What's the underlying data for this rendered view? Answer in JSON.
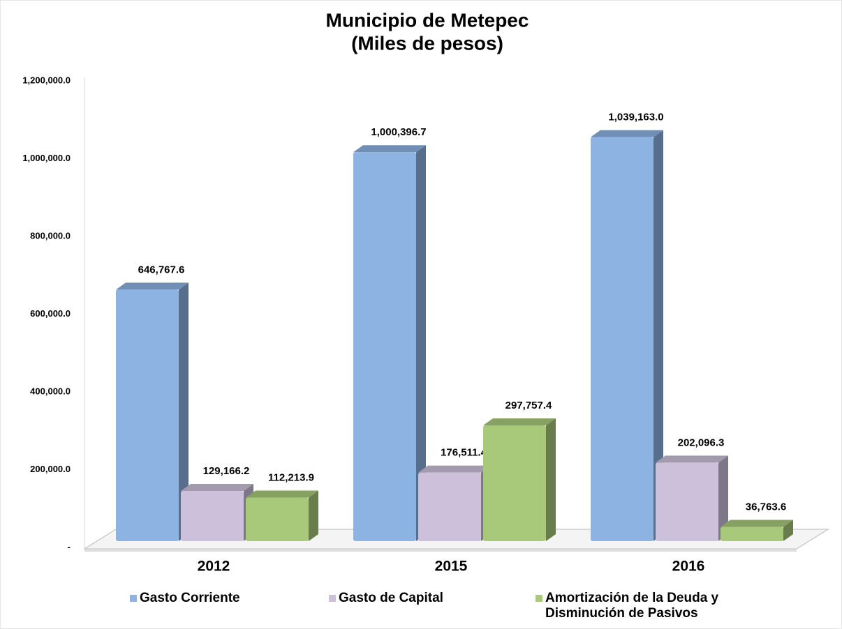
{
  "chart_data": {
    "type": "bar3d",
    "title": "Municipio de Metepec",
    "subtitle": "(Miles de pesos)",
    "categories": [
      "2012",
      "2015",
      "2016"
    ],
    "series": [
      {
        "name": "Gasto Corriente",
        "color": "#8db3e2",
        "values": [
          646767.6,
          1000396.7,
          1039163.0
        ],
        "value_labels": [
          "646,767.6",
          "1,000,396.7",
          "1,039,163.0"
        ]
      },
      {
        "name": "Gasto de Capital",
        "color": "#ccc0da",
        "values": [
          129166.2,
          176511.4,
          202096.3
        ],
        "value_labels": [
          "129,166.2",
          "176,511.4",
          "202,096.3"
        ]
      },
      {
        "name": "Amortización de la Deuda y Disminución de Pasivos",
        "color": "#a9c97a",
        "values": [
          112213.9,
          297757.4,
          36763.6
        ],
        "value_labels": [
          "112,213.9",
          "297,757.4",
          "36,763.6"
        ]
      }
    ],
    "ylim": [
      0,
      1200000
    ],
    "yticks": [
      {
        "value": 0,
        "label": "-"
      },
      {
        "value": 200000,
        "label": "200,000.0"
      },
      {
        "value": 400000,
        "label": "400,000.0"
      },
      {
        "value": 600000,
        "label": "600,000.0"
      },
      {
        "value": 800000,
        "label": "800,000.0"
      },
      {
        "value": 1000000,
        "label": "1,000,000.0"
      },
      {
        "value": 1200000,
        "label": "1,200,000.0"
      }
    ],
    "legend": "bottom",
    "grid": false
  }
}
